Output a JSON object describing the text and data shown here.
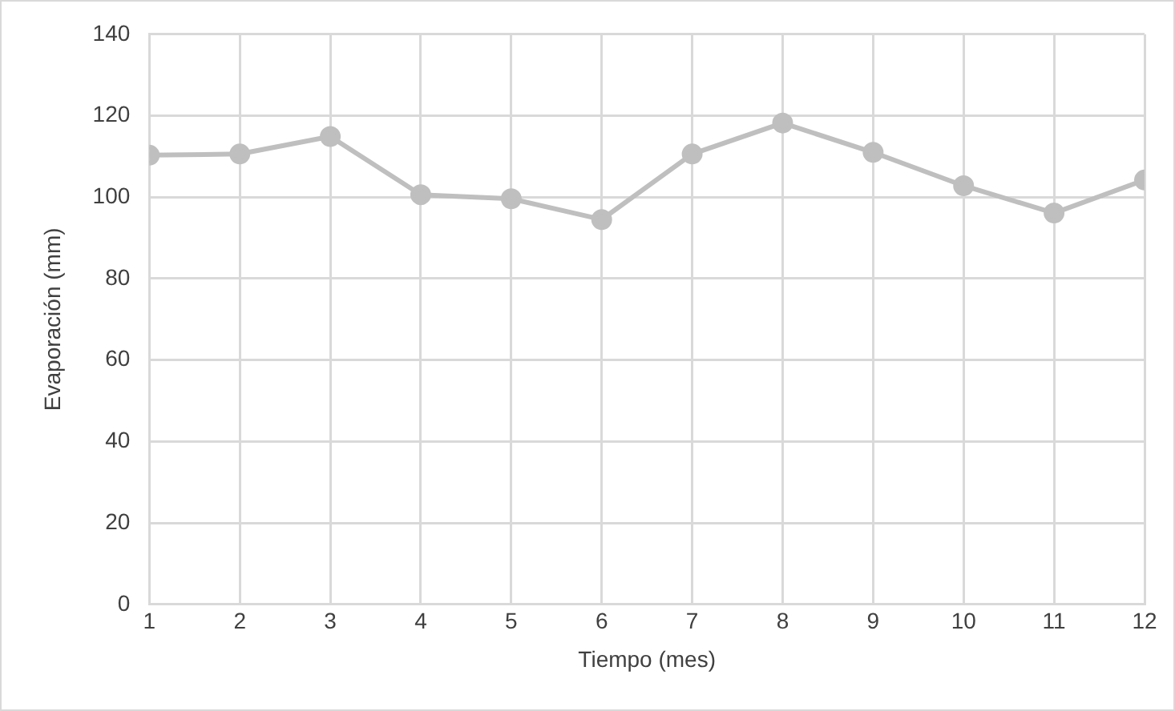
{
  "chart_data": {
    "type": "line",
    "xlabel": "Tiempo (mes)",
    "ylabel": "Evaporación (mm)",
    "x": [
      1,
      2,
      3,
      4,
      5,
      6,
      7,
      8,
      9,
      10,
      11,
      12
    ],
    "series": [
      {
        "color": "#bfbfbf",
        "values": [
          110.3,
          110.6,
          114.9,
          100.6,
          99.6,
          94.5,
          110.6,
          118.2,
          111,
          102.8,
          96.1,
          104.2
        ]
      }
    ],
    "xlim": [
      1,
      12
    ],
    "xticks": [
      1,
      2,
      3,
      4,
      5,
      6,
      7,
      8,
      9,
      10,
      11,
      12
    ],
    "ylim": [
      0,
      140
    ],
    "yticks": [
      0,
      20,
      40,
      60,
      80,
      100,
      120,
      140
    ],
    "grid": true,
    "legend": false,
    "marker": "circle",
    "line_style": "solid"
  }
}
